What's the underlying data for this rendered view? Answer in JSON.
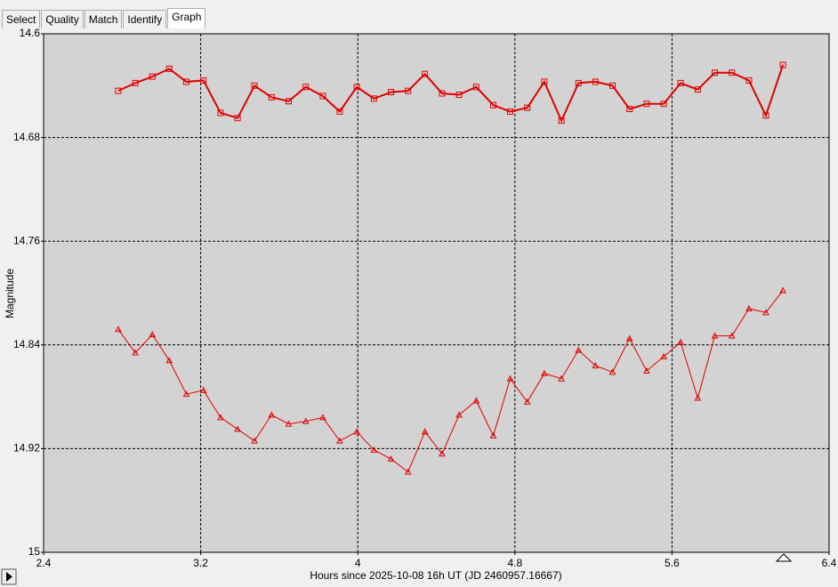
{
  "tabs": [
    "Select",
    "Quality",
    "Match",
    "Identify",
    "Graph"
  ],
  "active_tab": 4,
  "chart_data": {
    "type": "line",
    "x_label": "Hours since 2025-10-08 16h UT (JD 2460957.16667)",
    "y_label": "Magnitude",
    "xlim": [
      2.4,
      6.4
    ],
    "xticks": [
      2.4,
      3.2,
      4,
      4.8,
      5.6,
      6.4
    ],
    "ylim": [
      14.6,
      15
    ],
    "yticks": [
      14.6,
      14.68,
      14.76,
      14.84,
      14.92,
      15
    ],
    "y_inverted": true,
    "grid": true,
    "x": [
      2.78,
      2.867,
      2.954,
      3.04,
      3.127,
      3.214,
      3.301,
      3.388,
      3.474,
      3.561,
      3.648,
      3.735,
      3.822,
      3.908,
      3.995,
      4.082,
      4.169,
      4.256,
      4.342,
      4.429,
      4.516,
      4.603,
      4.69,
      4.776,
      4.863,
      4.95,
      5.037,
      5.124,
      5.21,
      5.297,
      5.384,
      5.471,
      5.558,
      5.644,
      5.731,
      5.818,
      5.905,
      5.992,
      6.078,
      6.165
    ],
    "series": [
      {
        "color": "#e00000",
        "marker": "square",
        "line_width": 2,
        "values": [
          14.644,
          14.638,
          14.633,
          14.627,
          14.637,
          14.636,
          14.661,
          14.665,
          14.64,
          14.649,
          14.652,
          14.641,
          14.648,
          14.66,
          14.641,
          14.65,
          14.645,
          14.644,
          14.631,
          14.646,
          14.647,
          14.641,
          14.655,
          14.66,
          14.657,
          14.637,
          14.667,
          14.638,
          14.637,
          14.64,
          14.658,
          14.654,
          14.654,
          14.638,
          14.643,
          14.63,
          14.63,
          14.636,
          14.663,
          14.624
        ]
      },
      {
        "color": "#e00000",
        "marker": "triangle",
        "line_width": 1,
        "values": [
          14.828,
          14.846,
          14.832,
          14.852,
          14.878,
          14.875,
          14.896,
          14.905,
          14.914,
          14.894,
          14.901,
          14.899,
          14.896,
          14.914,
          14.907,
          14.921,
          14.928,
          14.938,
          14.907,
          14.924,
          14.894,
          14.883,
          14.91,
          14.866,
          14.884,
          14.862,
          14.866,
          14.844,
          14.856,
          14.861,
          14.835,
          14.86,
          14.849,
          14.838,
          14.881,
          14.833,
          14.833,
          14.812,
          14.815,
          14.798
        ]
      }
    ]
  }
}
